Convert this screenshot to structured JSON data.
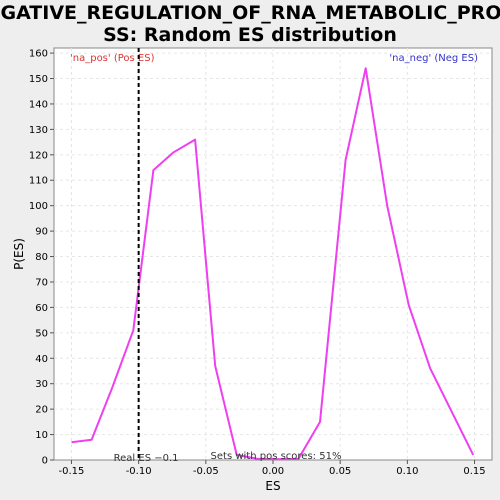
{
  "chart_data": {
    "type": "line",
    "title_lines": [
      "NEGATIVE_REGULATION_OF_RNA_METABOLIC_PROCE",
      "SS: Random ES distribution"
    ],
    "xlabel": "ES",
    "ylabel": "P(ES)",
    "xlim": [
      -0.163,
      0.163
    ],
    "ylim": [
      0,
      162
    ],
    "x_ticks": [
      -0.15,
      -0.1,
      -0.05,
      0.0,
      0.05,
      0.1,
      0.15
    ],
    "x_tick_labels": [
      "-0.15",
      "-0.10",
      "-0.05",
      "0.00",
      "0.05",
      "0.10",
      "0.15"
    ],
    "y_ticks": [
      0,
      10,
      20,
      30,
      40,
      50,
      60,
      70,
      80,
      90,
      100,
      110,
      120,
      130,
      140,
      150,
      160
    ],
    "grid": true,
    "series": [
      {
        "color": "#ee3ff0",
        "x": [
          -0.15,
          -0.135,
          -0.12,
          -0.104,
          -0.089,
          -0.074,
          -0.058,
          -0.043,
          -0.027,
          -0.012,
          0.004,
          0.019,
          0.035,
          0.054,
          0.069,
          0.085,
          0.101,
          0.117,
          0.133,
          0.149
        ],
        "y": [
          7,
          8,
          28,
          51,
          114,
          121,
          126,
          37,
          2,
          0.5,
          0.3,
          0.5,
          15,
          118,
          154,
          100,
          61,
          36,
          19,
          2
        ]
      }
    ],
    "real_es": {
      "x": -0.1,
      "label": "Real ES −0.1"
    },
    "corner_pos": {
      "text": "'na_pos' (Pos ES)",
      "color": "#dd3333"
    },
    "corner_neg": {
      "text": "'na_neg' (Neg ES)",
      "color": "#3333cc"
    },
    "footer_text": "Sets with pos scores: 51%"
  }
}
